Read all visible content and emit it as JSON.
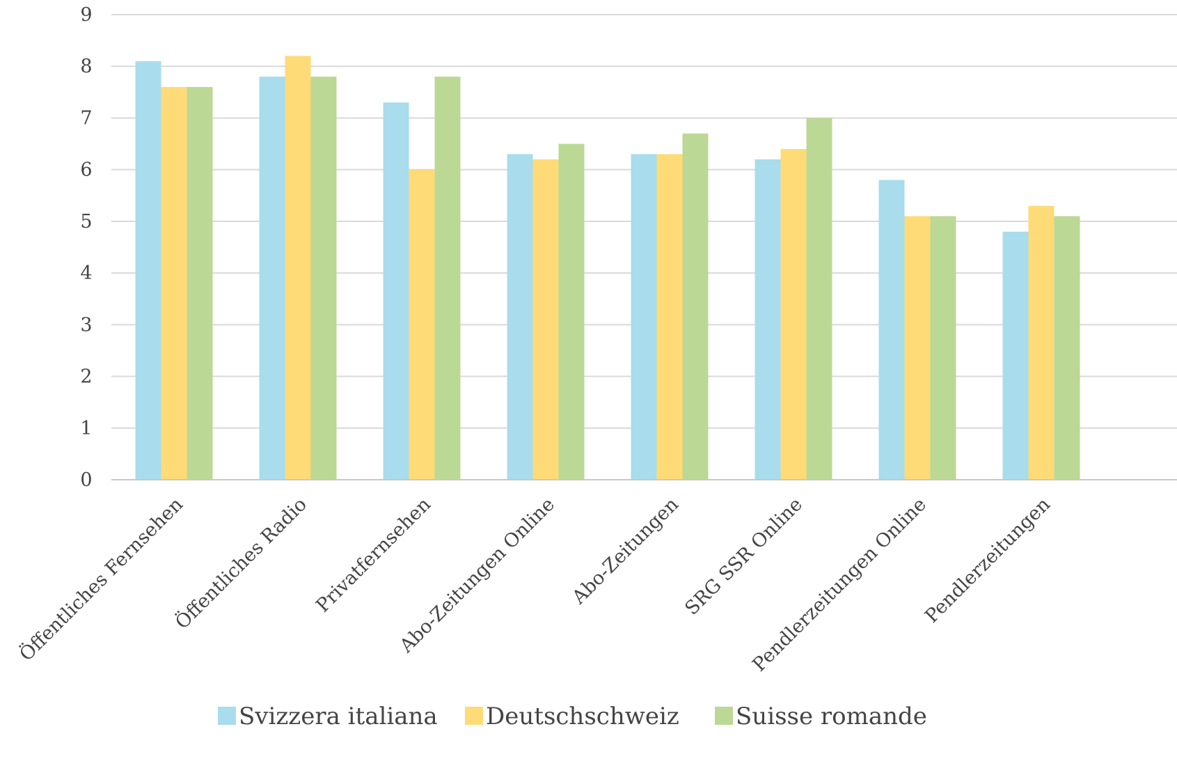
{
  "chart_data": {
    "type": "bar",
    "title": "",
    "xlabel": "",
    "ylabel": "",
    "ylim": [
      0,
      9
    ],
    "yticks": [
      "0",
      "1",
      "2",
      "3",
      "4",
      "5",
      "6",
      "7",
      "8",
      "9"
    ],
    "grid": true,
    "legend_position": "bottom",
    "categories": [
      "Öffentliches Fernsehen",
      "Öffentliches Radio",
      "Privatfernsehen",
      "Abo-Zeitungen Online",
      "Abo-Zeitungen",
      "SRG SSR Online",
      "Pendlerzeitungen Online",
      "Pendlerzeitungen"
    ],
    "series": [
      {
        "name": "Svizzera italiana",
        "color": "#a9dcec",
        "values": [
          8.1,
          7.8,
          7.3,
          6.3,
          6.3,
          6.2,
          5.8,
          4.8
        ]
      },
      {
        "name": "Deutschschweiz",
        "color": "#fedb77",
        "values": [
          7.6,
          8.2,
          6.0,
          6.2,
          6.3,
          6.4,
          5.1,
          5.3
        ]
      },
      {
        "name": "Suisse romande",
        "color": "#bcd895",
        "values": [
          7.6,
          7.8,
          7.8,
          6.5,
          6.7,
          7.0,
          5.1,
          5.1
        ]
      }
    ],
    "colors": {
      "grid": "#d9d9d9",
      "axis": "#c8c8c8",
      "text": "#444444"
    }
  }
}
